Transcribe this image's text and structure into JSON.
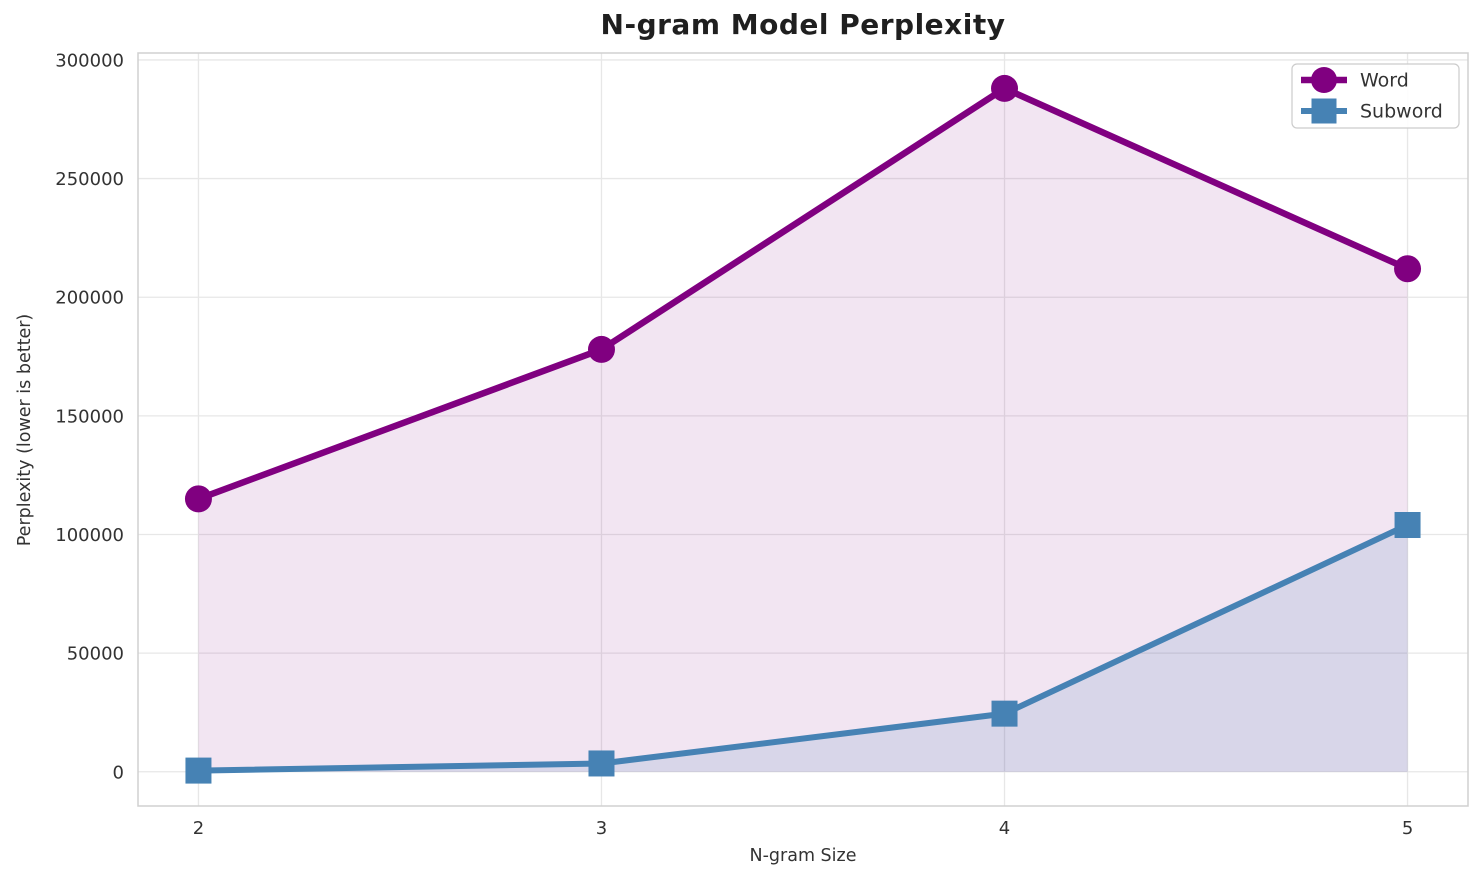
{
  "figure": {
    "title": "N-gram Model Perplexity"
  },
  "chart_data": {
    "type": "line",
    "title": "N-gram Model Perplexity",
    "xlabel": "N-gram Size",
    "ylabel": "Perplexity (lower is better)",
    "x": [
      2,
      3,
      4,
      5
    ],
    "series": [
      {
        "name": "Word",
        "values": [
          115000,
          178000,
          288000,
          212000
        ],
        "color": "#800080",
        "marker": "circle",
        "line_width": 6.5,
        "fill_alpha": 0.1
      },
      {
        "name": "Subword",
        "values": [
          500,
          3500,
          24500,
          104000
        ],
        "color": "#4682B4",
        "marker": "square",
        "line_width": 6,
        "fill_alpha": 0.15
      }
    ],
    "x_ticks": [
      "2",
      "3",
      "4",
      "5"
    ],
    "x_tick_values": [
      2,
      3,
      4,
      5
    ],
    "y_ticks": [
      "0",
      "50000",
      "100000",
      "150000",
      "200000",
      "250000",
      "300000"
    ],
    "y_tick_values": [
      0,
      50000,
      100000,
      150000,
      200000,
      250000,
      300000
    ],
    "xlim": [
      1.85,
      5.15
    ],
    "ylim": [
      -14425,
      302925
    ],
    "grid": true,
    "area_fill_baseline": 0,
    "legend": {
      "position": "upper right",
      "labels": [
        "Word",
        "Subword"
      ]
    }
  },
  "style": {
    "background": "#ffffff",
    "grid_color": "#e7e7e7",
    "spine_color": "#d0d0d0",
    "tick_text_color": "#333333",
    "title_color": "#1f1f1f",
    "legend_border_color": "#cccccc",
    "legend_background": "#ffffff"
  }
}
